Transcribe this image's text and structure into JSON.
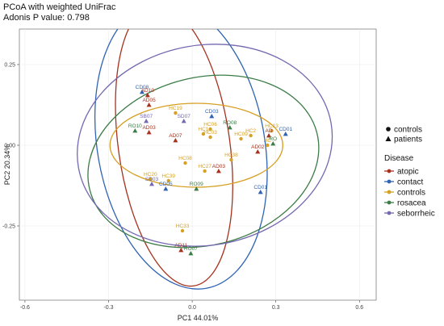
{
  "chart_data": {
    "type": "scatter",
    "title": "PCoA with weighted UniFrac",
    "subtitle": "Adonis P value: 0.798",
    "xlabel": "PC1 44.01%",
    "ylabel": "PC2 20.34%",
    "xlim": [
      -0.62,
      0.66
    ],
    "ylim": [
      -0.48,
      0.36
    ],
    "xticks": [
      -0.6,
      -0.3,
      0.0,
      0.3,
      0.6
    ],
    "xtick_labels": [
      "-0.6",
      "-0.3",
      "0.0",
      "0.3",
      "0.6"
    ],
    "yticks": [
      -0.25,
      0.0,
      0.25
    ],
    "ytick_labels": [
      "-0.25",
      "0.00",
      "0.25"
    ],
    "grid": true,
    "legend_position": "right",
    "shape_legend": {
      "items": [
        {
          "label": "controls",
          "shape": "circle"
        },
        {
          "label": "patients",
          "shape": "triangle"
        }
      ]
    },
    "color_legend": {
      "title": "Disease",
      "items": [
        {
          "label": "atopic",
          "color": "#a6321e"
        },
        {
          "label": "contact",
          "color": "#2f63b3"
        },
        {
          "label": "controls",
          "color": "#d6a023"
        },
        {
          "label": "rosacea",
          "color": "#3c7c46"
        },
        {
          "label": "seborrheic",
          "color": "#7468b0"
        }
      ]
    },
    "ellipses": [
      {
        "group": "atopic",
        "cx": -0.065,
        "cy": 0.0,
        "rx": 0.2,
        "ry": 0.44,
        "angle": -8
      },
      {
        "group": "contact",
        "cx": -0.04,
        "cy": 0.0,
        "rx": 0.3,
        "ry": 0.45,
        "angle": -10
      },
      {
        "group": "controls",
        "cx": 0.015,
        "cy": 0.0,
        "rx": 0.31,
        "ry": 0.13,
        "angle": 0
      },
      {
        "group": "rosacea",
        "cx": 0.04,
        "cy": -0.05,
        "rx": 0.42,
        "ry": 0.26,
        "angle": -14
      },
      {
        "group": "seborrheic",
        "cx": 0.045,
        "cy": 0.0,
        "rx": 0.46,
        "ry": 0.31,
        "angle": -10
      }
    ],
    "points": [
      {
        "label": "CD08",
        "x": -0.18,
        "y": 0.165,
        "group": "contact",
        "shape": "triangle"
      },
      {
        "label": "AD10",
        "x": -0.16,
        "y": 0.155,
        "group": "atopic",
        "shape": "triangle"
      },
      {
        "label": "AD05",
        "x": -0.155,
        "y": 0.125,
        "group": "atopic",
        "shape": "triangle"
      },
      {
        "label": "HC19",
        "x": -0.06,
        "y": 0.1,
        "group": "controls",
        "shape": "circle"
      },
      {
        "label": "CD03",
        "x": 0.07,
        "y": 0.09,
        "group": "contact",
        "shape": "triangle"
      },
      {
        "label": "SD07",
        "x": -0.03,
        "y": 0.075,
        "group": "seborrheic",
        "shape": "triangle"
      },
      {
        "label": "SB07",
        "x": -0.165,
        "y": 0.075,
        "group": "seborrheic",
        "shape": "triangle"
      },
      {
        "label": "RO10",
        "x": -0.205,
        "y": 0.045,
        "group": "rosacea",
        "shape": "triangle"
      },
      {
        "label": "AD03",
        "x": -0.155,
        "y": 0.04,
        "group": "atopic",
        "shape": "triangle"
      },
      {
        "label": "HC06",
        "x": 0.065,
        "y": 0.05,
        "group": "controls",
        "shape": "circle"
      },
      {
        "label": "RO08",
        "x": 0.135,
        "y": 0.055,
        "group": "rosacea",
        "shape": "triangle"
      },
      {
        "label": "HC1",
        "x": 0.04,
        "y": 0.035,
        "group": "controls",
        "shape": "circle"
      },
      {
        "label": "HC03",
        "x": 0.065,
        "y": 0.025,
        "group": "controls",
        "shape": "circle"
      },
      {
        "label": "AD07",
        "x": -0.06,
        "y": 0.015,
        "group": "atopic",
        "shape": "triangle"
      },
      {
        "label": "HC13",
        "x": 0.285,
        "y": 0.045,
        "group": "controls",
        "shape": "circle"
      },
      {
        "label": "CD01",
        "x": 0.335,
        "y": 0.035,
        "group": "contact",
        "shape": "triangle"
      },
      {
        "label": "HC2",
        "x": 0.21,
        "y": 0.03,
        "group": "controls",
        "shape": "circle"
      },
      {
        "label": "AD",
        "x": 0.275,
        "y": 0.03,
        "group": "atopic",
        "shape": "triangle"
      },
      {
        "label": "HC09",
        "x": 0.175,
        "y": 0.02,
        "group": "controls",
        "shape": "circle"
      },
      {
        "label": "HC",
        "x": 0.27,
        "y": 0.0,
        "group": "controls",
        "shape": "circle"
      },
      {
        "label": "RO",
        "x": 0.29,
        "y": 0.005,
        "group": "rosacea",
        "shape": "triangle"
      },
      {
        "label": "AD02",
        "x": 0.235,
        "y": -0.02,
        "group": "atopic",
        "shape": "triangle"
      },
      {
        "label": "HC38",
        "x": 0.14,
        "y": -0.045,
        "group": "controls",
        "shape": "circle"
      },
      {
        "label": "HC08",
        "x": -0.025,
        "y": -0.055,
        "group": "controls",
        "shape": "circle"
      },
      {
        "label": "HC27",
        "x": 0.045,
        "y": -0.08,
        "group": "controls",
        "shape": "circle"
      },
      {
        "label": "AD03",
        "x": 0.095,
        "y": -0.08,
        "group": "atopic",
        "shape": "triangle"
      },
      {
        "label": "HC20",
        "x": -0.15,
        "y": -0.105,
        "group": "controls",
        "shape": "circle"
      },
      {
        "label": "HC39",
        "x": -0.085,
        "y": -0.11,
        "group": "controls",
        "shape": "circle"
      },
      {
        "label": "SD03",
        "x": -0.145,
        "y": -0.12,
        "group": "seborrheic",
        "shape": "triangle"
      },
      {
        "label": "CD05",
        "x": -0.095,
        "y": -0.135,
        "group": "contact",
        "shape": "triangle"
      },
      {
        "label": "RO09",
        "x": 0.015,
        "y": -0.135,
        "group": "rosacea",
        "shape": "triangle"
      },
      {
        "label": "CD01",
        "x": 0.245,
        "y": -0.145,
        "group": "contact",
        "shape": "triangle"
      },
      {
        "label": "HC33",
        "x": -0.035,
        "y": -0.265,
        "group": "controls",
        "shape": "circle"
      },
      {
        "label": "AD11",
        "x": -0.04,
        "y": -0.325,
        "group": "atopic",
        "shape": "triangle"
      },
      {
        "label": "RO07",
        "x": -0.005,
        "y": -0.335,
        "group": "rosacea",
        "shape": "triangle"
      }
    ]
  }
}
